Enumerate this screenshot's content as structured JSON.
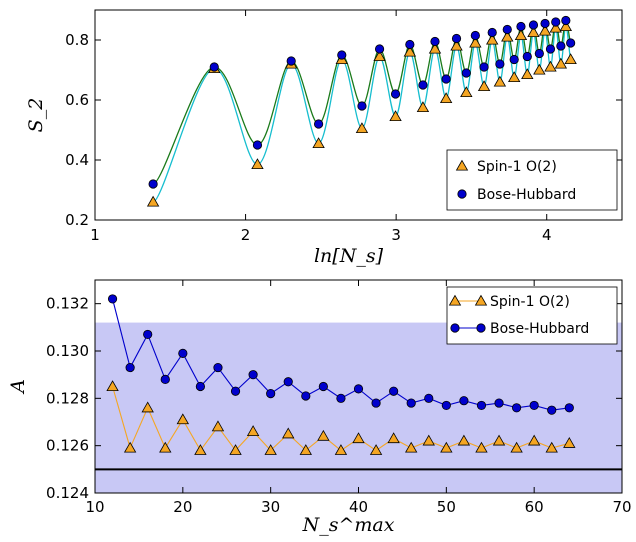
{
  "chart_data": [
    {
      "type": "scatter",
      "xlabel": "ln[N_s]",
      "ylabel": "S_2",
      "xlim": [
        1,
        4.5
      ],
      "ylim": [
        0.2,
        0.9
      ],
      "xticks": [
        "1",
        "2",
        "3",
        "4"
      ],
      "yticks": [
        "0.2",
        "0.4",
        "0.6",
        "0.8"
      ],
      "grid": false,
      "legend_position": "lower-right",
      "legend": [
        "Spin-1 O(2)",
        "Bose-Hubbard"
      ],
      "series": [
        {
          "name": "Spin-1 O(2)",
          "marker": "triangle",
          "color": "#f5a623",
          "fit_color": "#17becf",
          "x": [
            1.386,
            1.792,
            2.079,
            2.303,
            2.485,
            2.639,
            2.773,
            2.89,
            2.996,
            3.091,
            3.178,
            3.258,
            3.332,
            3.401,
            3.466,
            3.526,
            3.584,
            3.638,
            3.689,
            3.738,
            3.784,
            3.829,
            3.871,
            3.912,
            3.951,
            3.989,
            4.025,
            4.06,
            4.094,
            4.127,
            4.159
          ],
          "y": [
            0.26,
            0.705,
            0.385,
            0.72,
            0.455,
            0.735,
            0.505,
            0.745,
            0.545,
            0.76,
            0.575,
            0.77,
            0.605,
            0.78,
            0.625,
            0.79,
            0.645,
            0.8,
            0.66,
            0.81,
            0.675,
            0.815,
            0.685,
            0.825,
            0.7,
            0.83,
            0.71,
            0.84,
            0.72,
            0.845,
            0.735
          ]
        },
        {
          "name": "Bose-Hubbard",
          "marker": "circle",
          "color": "#0000cc",
          "fit_color": "#1a7a1a",
          "x": [
            1.386,
            1.792,
            2.079,
            2.303,
            2.485,
            2.639,
            2.773,
            2.89,
            2.996,
            3.091,
            3.178,
            3.258,
            3.332,
            3.401,
            3.466,
            3.526,
            3.584,
            3.638,
            3.689,
            3.738,
            3.784,
            3.829,
            3.871,
            3.912,
            3.951,
            3.989,
            4.025,
            4.06,
            4.094,
            4.127,
            4.159
          ],
          "y": [
            0.32,
            0.71,
            0.45,
            0.73,
            0.52,
            0.75,
            0.58,
            0.77,
            0.62,
            0.785,
            0.65,
            0.795,
            0.67,
            0.805,
            0.69,
            0.815,
            0.71,
            0.825,
            0.72,
            0.835,
            0.735,
            0.845,
            0.745,
            0.85,
            0.755,
            0.855,
            0.77,
            0.86,
            0.78,
            0.865,
            0.79
          ]
        }
      ]
    },
    {
      "type": "line",
      "xlabel": "N_s^max",
      "ylabel": "A",
      "xlim": [
        10,
        70
      ],
      "ylim": [
        0.124,
        0.133
      ],
      "xticks": [
        "10",
        "20",
        "30",
        "40",
        "50",
        "60",
        "70"
      ],
      "yticks": [
        "0.124",
        "0.126",
        "0.128",
        "0.130",
        "0.132"
      ],
      "grid": false,
      "legend_position": "top-right",
      "legend": [
        "Spin-1 O(2)",
        "Bose-Hubbard"
      ],
      "band": {
        "ymin": 0.124,
        "ymax": 0.1312,
        "color": "#c8c8f5"
      },
      "hline": {
        "y": 0.125,
        "color": "#000000"
      },
      "x": [
        12,
        14,
        16,
        18,
        20,
        22,
        24,
        26,
        28,
        30,
        32,
        34,
        36,
        38,
        40,
        42,
        44,
        46,
        48,
        50,
        52,
        54,
        56,
        58,
        60,
        62,
        64
      ],
      "series": [
        {
          "name": "Spin-1 O(2)",
          "marker": "triangle",
          "color": "#f5a623",
          "values": [
            0.1285,
            0.1259,
            0.1276,
            0.1259,
            0.1271,
            0.1258,
            0.1268,
            0.1258,
            0.1266,
            0.1258,
            0.1265,
            0.1258,
            0.1264,
            0.1258,
            0.1263,
            0.1258,
            0.1263,
            0.1259,
            0.1262,
            0.1259,
            0.1262,
            0.1259,
            0.1262,
            0.1259,
            0.1262,
            0.1259,
            0.1261
          ]
        },
        {
          "name": "Bose-Hubbard",
          "marker": "circle",
          "color": "#0000cc",
          "values": [
            0.1322,
            0.1293,
            0.1307,
            0.1288,
            0.1299,
            0.1285,
            0.1293,
            0.1283,
            0.129,
            0.1282,
            0.1287,
            0.1281,
            0.1285,
            0.128,
            0.1284,
            0.1278,
            0.1283,
            0.1278,
            0.128,
            0.1277,
            0.1279,
            0.1277,
            0.1278,
            0.1276,
            0.1277,
            0.1275,
            0.1276
          ]
        }
      ]
    }
  ]
}
